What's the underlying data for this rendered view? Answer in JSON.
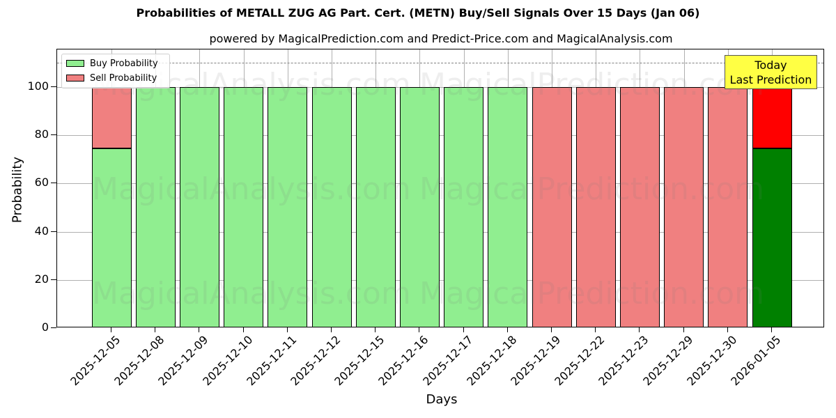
{
  "title": "Probabilities of METALL ZUG AG Part. Cert. (METN) Buy/Sell Signals Over 15 Days (Jan 06)",
  "subtitle": "powered by MagicalPrediction.com and Predict-Price.com and MagicalAnalysis.com",
  "legend": {
    "buy_label": "Buy Probability",
    "sell_label": "Sell Probability"
  },
  "annotation": {
    "line1": "Today",
    "line2": "Last Prediction"
  },
  "watermarks": [
    "MagicalAnalysis.com",
    "MagicalPrediction.com"
  ],
  "colors": {
    "buy": "#90ee90",
    "sell": "#f08080",
    "buy_today": "#008000",
    "sell_today": "#ff0000",
    "annotation_bg": "#ffff44"
  },
  "yticks": [
    "0",
    "20",
    "40",
    "60",
    "80",
    "100"
  ],
  "chart_data": {
    "type": "bar",
    "stacked": true,
    "title": "Probabilities of METALL ZUG AG Part. Cert. (METN) Buy/Sell Signals Over 15 Days (Jan 06)",
    "subtitle": "powered by MagicalPrediction.com and Predict-Price.com and MagicalAnalysis.com",
    "xlabel": "Days",
    "ylabel": "Probability",
    "ylim": [
      0,
      115
    ],
    "yticks": [
      0,
      20,
      40,
      60,
      80,
      100
    ],
    "grid": true,
    "legend_position": "upper left",
    "reference_line": {
      "y": 110,
      "style": "dashed",
      "color": "#808080"
    },
    "categories": [
      "2025-12-05",
      "2025-12-08",
      "2025-12-09",
      "2025-12-10",
      "2025-12-11",
      "2025-12-12",
      "2025-12-15",
      "2025-12-16",
      "2025-12-17",
      "2025-12-18",
      "2025-12-19",
      "2025-12-22",
      "2025-12-23",
      "2025-12-29",
      "2025-12-30",
      "2026-01-05"
    ],
    "series": [
      {
        "name": "Buy Probability",
        "values": [
          74.6,
          100,
          100,
          100,
          100,
          100,
          100,
          100,
          100,
          100,
          0,
          0,
          0,
          0,
          0,
          74.6
        ]
      },
      {
        "name": "Sell Probability",
        "values": [
          25.4,
          0,
          0,
          0,
          0,
          0,
          0,
          0,
          0,
          0,
          100,
          100,
          100,
          100,
          100,
          25.4
        ]
      }
    ],
    "annotations": [
      {
        "text": "Today\nLast Prediction",
        "x": "2026-01-05"
      }
    ]
  }
}
